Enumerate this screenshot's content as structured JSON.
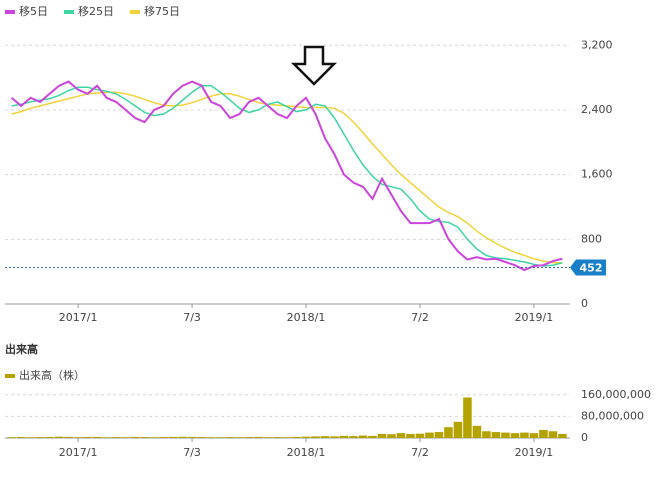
{
  "chart_data": [
    {
      "type": "line",
      "legend": "top-left",
      "x": [
        1,
        2,
        3,
        4,
        5,
        6,
        7,
        8,
        9,
        10,
        11,
        12,
        13,
        14,
        15,
        16,
        17,
        18,
        19,
        20,
        21,
        22,
        23,
        24,
        25,
        26,
        27,
        28,
        29,
        30,
        31,
        32,
        33,
        34,
        35,
        36,
        37,
        38,
        39,
        40,
        41,
        42,
        43,
        44,
        45,
        46,
        47,
        48,
        49,
        50,
        51,
        52,
        53,
        54,
        55,
        56,
        57,
        58,
        59
      ],
      "xlim": [
        0.3,
        59.8
      ],
      "xticks": [
        {
          "value": 8,
          "label": "2017/1"
        },
        {
          "value": 20,
          "label": "7/3"
        },
        {
          "value": 32,
          "label": "2018/1"
        },
        {
          "value": 44,
          "label": "7/2"
        },
        {
          "value": 56,
          "label": "2019/1"
        }
      ],
      "ylim": [
        0,
        3500
      ],
      "yticks": [
        0,
        800,
        {
          "value": 1600,
          "label": "1,600"
        },
        {
          "value": 2400,
          "label": "2,400"
        },
        {
          "value": 3200,
          "label": "3,200"
        }
      ],
      "grid": true,
      "current_price": 452,
      "series": [
        {
          "name": "移5日",
          "color": "#cc44dd",
          "values": [
            2550,
            2450,
            2550,
            2500,
            2600,
            2700,
            2750,
            2650,
            2600,
            2700,
            2550,
            2500,
            2400,
            2300,
            2250,
            2400,
            2450,
            2600,
            2700,
            2750,
            2700,
            2500,
            2450,
            2300,
            2350,
            2500,
            2550,
            2450,
            2350,
            2300,
            2450,
            2550,
            2350,
            2050,
            1850,
            1600,
            1500,
            1450,
            1300,
            1550,
            1350,
            1150,
            1000,
            1000,
            1000,
            1050,
            800,
            650,
            550,
            580,
            550,
            560,
            520,
            480,
            420,
            470,
            480,
            530,
            560
          ]
        },
        {
          "name": "移25日",
          "color": "#3dd6a3",
          "values": [
            2450,
            2470,
            2500,
            2520,
            2540,
            2580,
            2640,
            2680,
            2680,
            2650,
            2630,
            2600,
            2530,
            2450,
            2370,
            2330,
            2350,
            2420,
            2520,
            2620,
            2700,
            2700,
            2620,
            2520,
            2420,
            2370,
            2400,
            2470,
            2500,
            2440,
            2380,
            2400,
            2470,
            2450,
            2300,
            2100,
            1900,
            1720,
            1580,
            1480,
            1450,
            1420,
            1300,
            1150,
            1050,
            1020,
            1010,
            950,
            800,
            680,
            600,
            570,
            560,
            540,
            520,
            490,
            470,
            480,
            510
          ]
        },
        {
          "name": "移75日",
          "color": "#f2d23a",
          "values": [
            2350,
            2380,
            2420,
            2450,
            2480,
            2510,
            2540,
            2570,
            2600,
            2610,
            2620,
            2620,
            2600,
            2570,
            2530,
            2490,
            2460,
            2450,
            2460,
            2490,
            2530,
            2570,
            2600,
            2600,
            2570,
            2530,
            2490,
            2470,
            2460,
            2450,
            2440,
            2430,
            2430,
            2430,
            2420,
            2360,
            2250,
            2120,
            1980,
            1850,
            1720,
            1600,
            1500,
            1400,
            1300,
            1200,
            1130,
            1080,
            1000,
            900,
            820,
            750,
            690,
            640,
            600,
            560,
            530,
            510,
            510
          ]
        }
      ]
    },
    {
      "type": "bar",
      "title": "出来高",
      "legend": "top-left",
      "x": [
        1,
        2,
        3,
        4,
        5,
        6,
        7,
        8,
        9,
        10,
        11,
        12,
        13,
        14,
        15,
        16,
        17,
        18,
        19,
        20,
        21,
        22,
        23,
        24,
        25,
        26,
        27,
        28,
        29,
        30,
        31,
        32,
        33,
        34,
        35,
        36,
        37,
        38,
        39,
        40,
        41,
        42,
        43,
        44,
        45,
        46,
        47,
        48,
        49,
        50,
        51,
        52,
        53,
        54,
        55,
        56,
        57,
        58,
        59
      ],
      "xlim": [
        0.3,
        59.8
      ],
      "xticks": [
        {
          "value": 8,
          "label": "2017/1"
        },
        {
          "value": 20,
          "label": "7/3"
        },
        {
          "value": 32,
          "label": "2018/1"
        },
        {
          "value": 44,
          "label": "7/2"
        },
        {
          "value": 56,
          "label": "2019/1"
        }
      ],
      "ylim": [
        0,
        200000000
      ],
      "yticks": [
        0,
        {
          "value": 80000000,
          "label": "80,000,000"
        },
        {
          "value": 160000000,
          "label": "160,000,000"
        }
      ],
      "grid": true,
      "series": [
        {
          "name": "出来高（株）",
          "color": "#b3a200",
          "values": [
            3000000,
            4000000,
            3000000,
            3500000,
            4000000,
            5000000,
            4000000,
            3000000,
            3500000,
            4000000,
            3000000,
            3500000,
            3000000,
            4000000,
            3500000,
            3000000,
            3500000,
            4000000,
            4500000,
            4000000,
            3500000,
            3000000,
            3000000,
            3500000,
            3000000,
            3500000,
            4000000,
            3000000,
            3500000,
            3000000,
            4000000,
            5000000,
            6000000,
            7000000,
            6000000,
            8000000,
            7000000,
            9000000,
            8000000,
            15000000,
            14000000,
            18000000,
            15000000,
            16000000,
            20000000,
            22000000,
            40000000,
            60000000,
            150000000,
            45000000,
            25000000,
            22000000,
            20000000,
            18000000,
            20000000,
            18000000,
            30000000,
            25000000,
            15000000
          ]
        }
      ]
    }
  ]
}
